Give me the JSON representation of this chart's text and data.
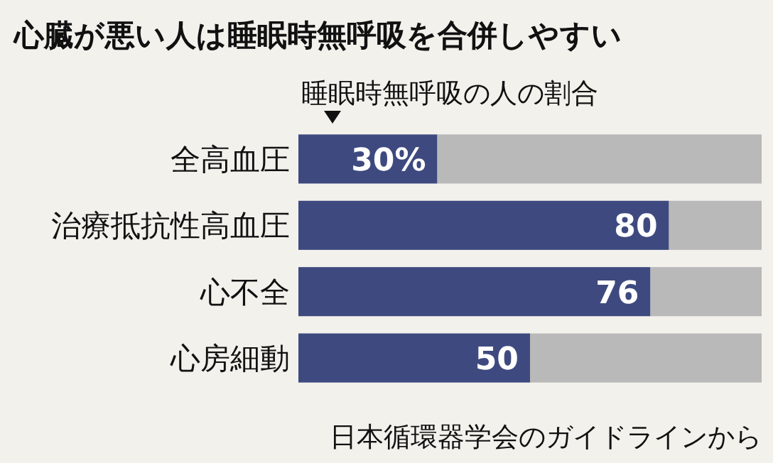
{
  "chart_data": {
    "type": "bar",
    "title": "心臓が悪い人は睡眠時無呼吸を合併しやすい",
    "subtitle": "睡眠時無呼吸の人の割合",
    "annotations": [
      "日本循環器学会のガイドラインから"
    ],
    "orientation": "horizontal",
    "stacked": true,
    "categories": [
      "全高血圧",
      "治療抵抗性高血圧",
      "心不全",
      "心房細動"
    ],
    "xlim": [
      0,
      100
    ],
    "tick_labels": "y",
    "series": [
      {
        "color": "#3e4a7f",
        "values": [
          30,
          80,
          76,
          50
        ],
        "value_labels": [
          "30%",
          "80",
          "76",
          "50"
        ]
      },
      {
        "color": "#b9b9b9",
        "values": [
          70,
          20,
          24,
          50
        ]
      }
    ]
  }
}
